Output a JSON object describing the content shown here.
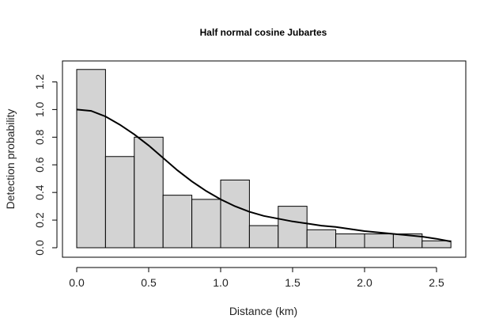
{
  "chart_data": {
    "type": "bar",
    "title": "Half normal cosine Jubartes",
    "xlabel": "Distance (km)",
    "ylabel": "Detection probability",
    "xlim": [
      0,
      2.6
    ],
    "ylim": [
      0,
      1.3
    ],
    "x_ticks": [
      "0.0",
      "0.5",
      "1.0",
      "1.5",
      "2.0",
      "2.5"
    ],
    "y_ticks": [
      "0.0",
      "0.2",
      "0.4",
      "0.6",
      "0.8",
      "1.0",
      "1.2"
    ],
    "bins": [
      {
        "start": 0.0,
        "end": 0.2,
        "value": 1.29
      },
      {
        "start": 0.2,
        "end": 0.4,
        "value": 0.66
      },
      {
        "start": 0.4,
        "end": 0.6,
        "value": 0.8
      },
      {
        "start": 0.6,
        "end": 0.8,
        "value": 0.38
      },
      {
        "start": 0.8,
        "end": 1.0,
        "value": 0.35
      },
      {
        "start": 1.0,
        "end": 1.2,
        "value": 0.49
      },
      {
        "start": 1.2,
        "end": 1.4,
        "value": 0.16
      },
      {
        "start": 1.4,
        "end": 1.6,
        "value": 0.3
      },
      {
        "start": 1.6,
        "end": 1.8,
        "value": 0.13
      },
      {
        "start": 1.8,
        "end": 2.0,
        "value": 0.1
      },
      {
        "start": 2.0,
        "end": 2.2,
        "value": 0.1
      },
      {
        "start": 2.2,
        "end": 2.4,
        "value": 0.1
      },
      {
        "start": 2.4,
        "end": 2.6,
        "value": 0.05
      }
    ],
    "fitted_curve": {
      "x": [
        0.0,
        0.1,
        0.2,
        0.3,
        0.4,
        0.5,
        0.6,
        0.7,
        0.8,
        0.9,
        1.0,
        1.1,
        1.2,
        1.3,
        1.4,
        1.5,
        1.6,
        1.7,
        1.8,
        1.9,
        2.0,
        2.1,
        2.2,
        2.3,
        2.4,
        2.5,
        2.6
      ],
      "y": [
        1.0,
        0.99,
        0.95,
        0.89,
        0.82,
        0.74,
        0.65,
        0.56,
        0.48,
        0.41,
        0.35,
        0.3,
        0.26,
        0.23,
        0.21,
        0.19,
        0.175,
        0.16,
        0.15,
        0.135,
        0.12,
        0.11,
        0.1,
        0.09,
        0.08,
        0.065,
        0.045
      ]
    },
    "bar_fill": "#d3d3d3",
    "bar_stroke": "#000000",
    "curve_color": "#000000",
    "grid": false,
    "legend": "none"
  }
}
